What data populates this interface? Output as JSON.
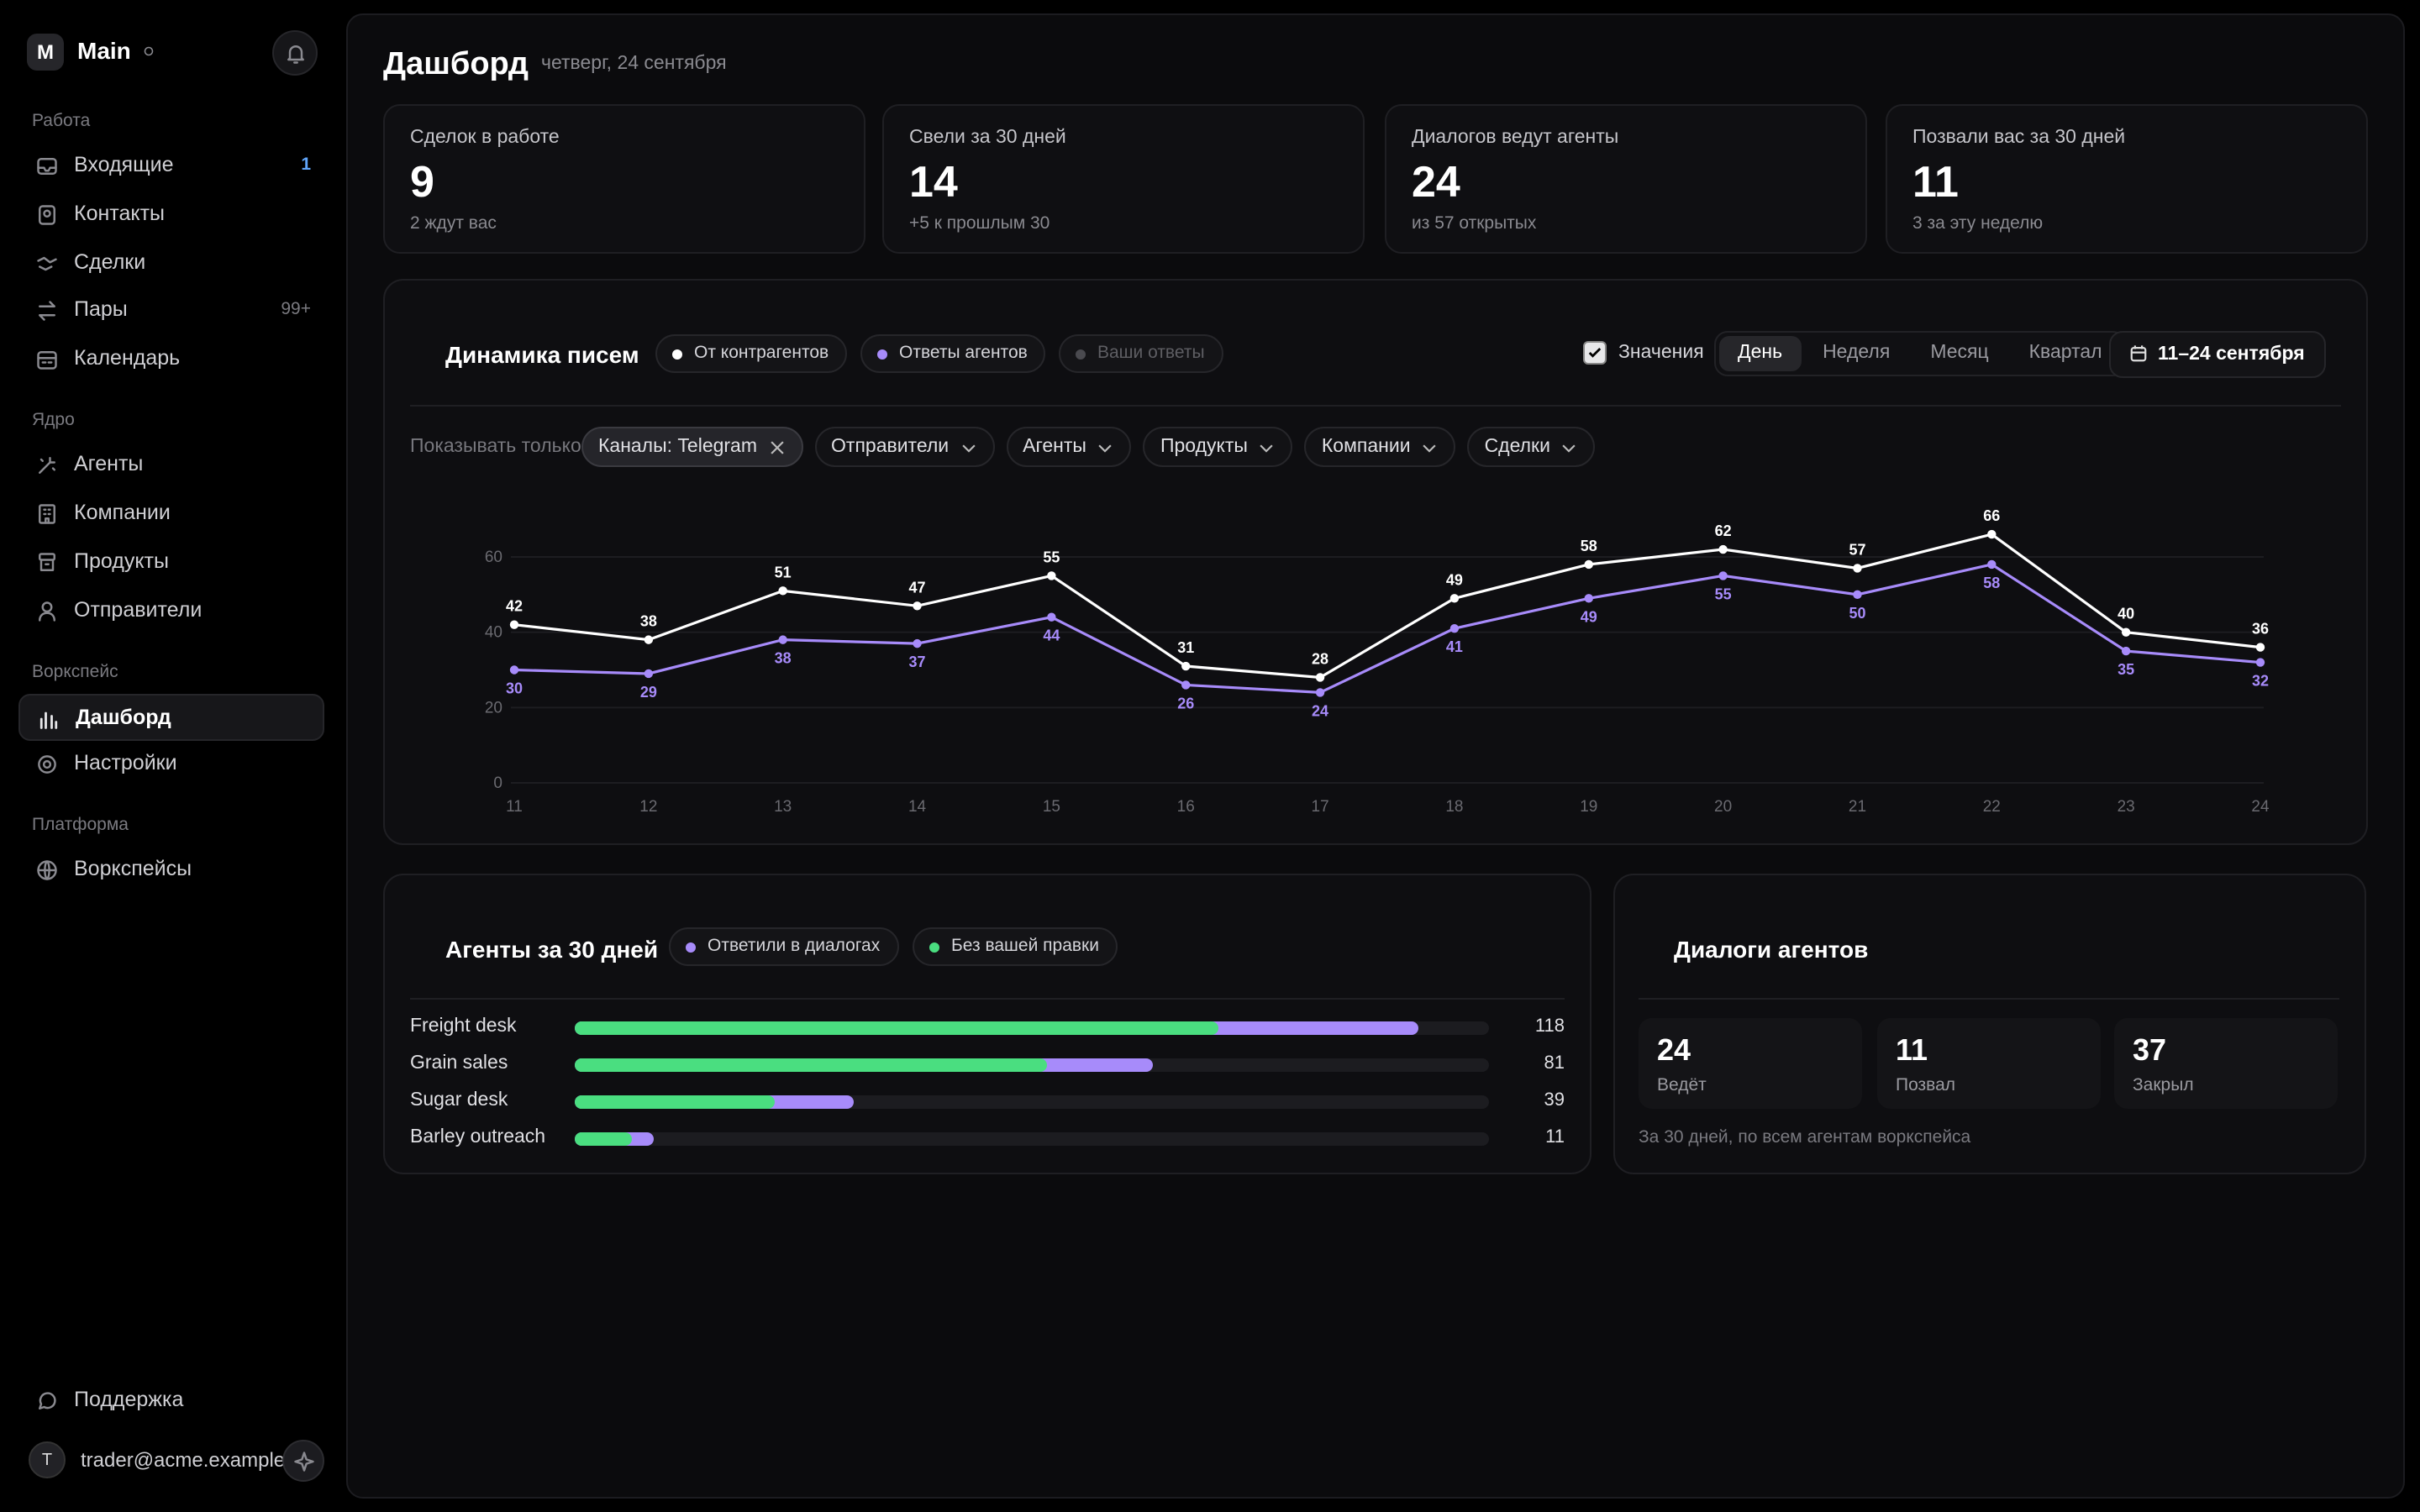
{
  "sidebar": {
    "logo": "M",
    "workspace": "Main",
    "sections": [
      {
        "title": "Работа",
        "items": [
          {
            "label": "Входящие",
            "badge": "1"
          },
          {
            "label": "Контакты"
          },
          {
            "label": "Сделки"
          },
          {
            "label": "Пары",
            "badge": "99+"
          },
          {
            "label": "Календарь"
          }
        ]
      },
      {
        "title": "Ядро",
        "items": [
          {
            "label": "Агенты"
          },
          {
            "label": "Компании"
          },
          {
            "label": "Продукты"
          },
          {
            "label": "Отправители"
          }
        ]
      },
      {
        "title": "Воркспейс",
        "items": [
          {
            "label": "Дашборд",
            "active": true
          },
          {
            "label": "Настройки"
          }
        ]
      },
      {
        "title": "Платформа",
        "items": [
          {
            "label": "Воркспейсы"
          }
        ]
      }
    ],
    "support": "Поддержка",
    "avatar": "T",
    "user": "trader@acme.example"
  },
  "header": {
    "title": "Дашборд",
    "date": "четверг, 24 сентября"
  },
  "kpis": [
    {
      "label": "Сделок в работе",
      "value": 9,
      "note": "2 ждут вас"
    },
    {
      "label": "Свели за 30 дней",
      "value": 14,
      "note": "+5 к прошлым 30"
    },
    {
      "label": "Диалогов ведут агенты",
      "value": 24,
      "note": "из 57 открытых"
    },
    {
      "label": "Позвали вас за 30 дней",
      "value": 11,
      "note": "3 за эту неделю"
    }
  ],
  "controls": {
    "values_toggle": "Значения",
    "values_on": true,
    "periods": [
      "День",
      "Неделя",
      "Месяц",
      "Квартал"
    ],
    "active_period": 0,
    "date_range": "11–24 сентября",
    "filter_label": "Показывать только",
    "filters": [
      {
        "label": "Каналы: Telegram",
        "active": true
      },
      {
        "label": "Отправители"
      },
      {
        "label": "Агенты"
      },
      {
        "label": "Продукты"
      },
      {
        "label": "Компании"
      },
      {
        "label": "Сделки"
      }
    ]
  },
  "chart_data": [
    {
      "type": "line",
      "title": "Динамика писем",
      "categories": [
        "11",
        "12",
        "13",
        "14",
        "15",
        "16",
        "17",
        "18",
        "19",
        "20",
        "21",
        "22",
        "23",
        "24"
      ],
      "series": [
        {
          "name": "От контрагентов",
          "color": "#ffffff",
          "values": [
            42,
            38,
            51,
            47,
            55,
            31,
            28,
            49,
            58,
            62,
            57,
            66,
            40,
            36
          ]
        },
        {
          "name": "Ответы агентов",
          "color": "#a78bfa",
          "values": [
            30,
            29,
            38,
            37,
            44,
            26,
            24,
            41,
            49,
            55,
            50,
            58,
            35,
            32
          ]
        }
      ],
      "inactive_series": [
        {
          "name": "Ваши ответы",
          "color": "#4a4a4f"
        }
      ],
      "ylim": [
        0,
        60
      ],
      "yticks": [
        0,
        20,
        40,
        60
      ],
      "grid": true,
      "data_labels": true
    },
    {
      "type": "bar",
      "title": "Агенты за 30 дней",
      "orientation": "horizontal",
      "categories": [
        "Freight desk",
        "Grain sales",
        "Sugar desk",
        "Barley outreach"
      ],
      "series": [
        {
          "name": "Ответили в диалогах",
          "color": "#a78bfa",
          "values": [
            118,
            81,
            39,
            11
          ]
        },
        {
          "name": "Без вашей правки",
          "color": "#4ade80",
          "values": [
            90,
            66,
            28,
            8
          ]
        }
      ],
      "xlim": [
        0,
        128
      ]
    }
  ],
  "dialogs": {
    "title": "Диалоги агентов",
    "stats": [
      {
        "value": 24,
        "label": "Ведёт"
      },
      {
        "value": 11,
        "label": "Позвал"
      },
      {
        "value": 37,
        "label": "Закрыл"
      }
    ],
    "caption": "За 30 дней, по всем агентам воркспейса"
  }
}
